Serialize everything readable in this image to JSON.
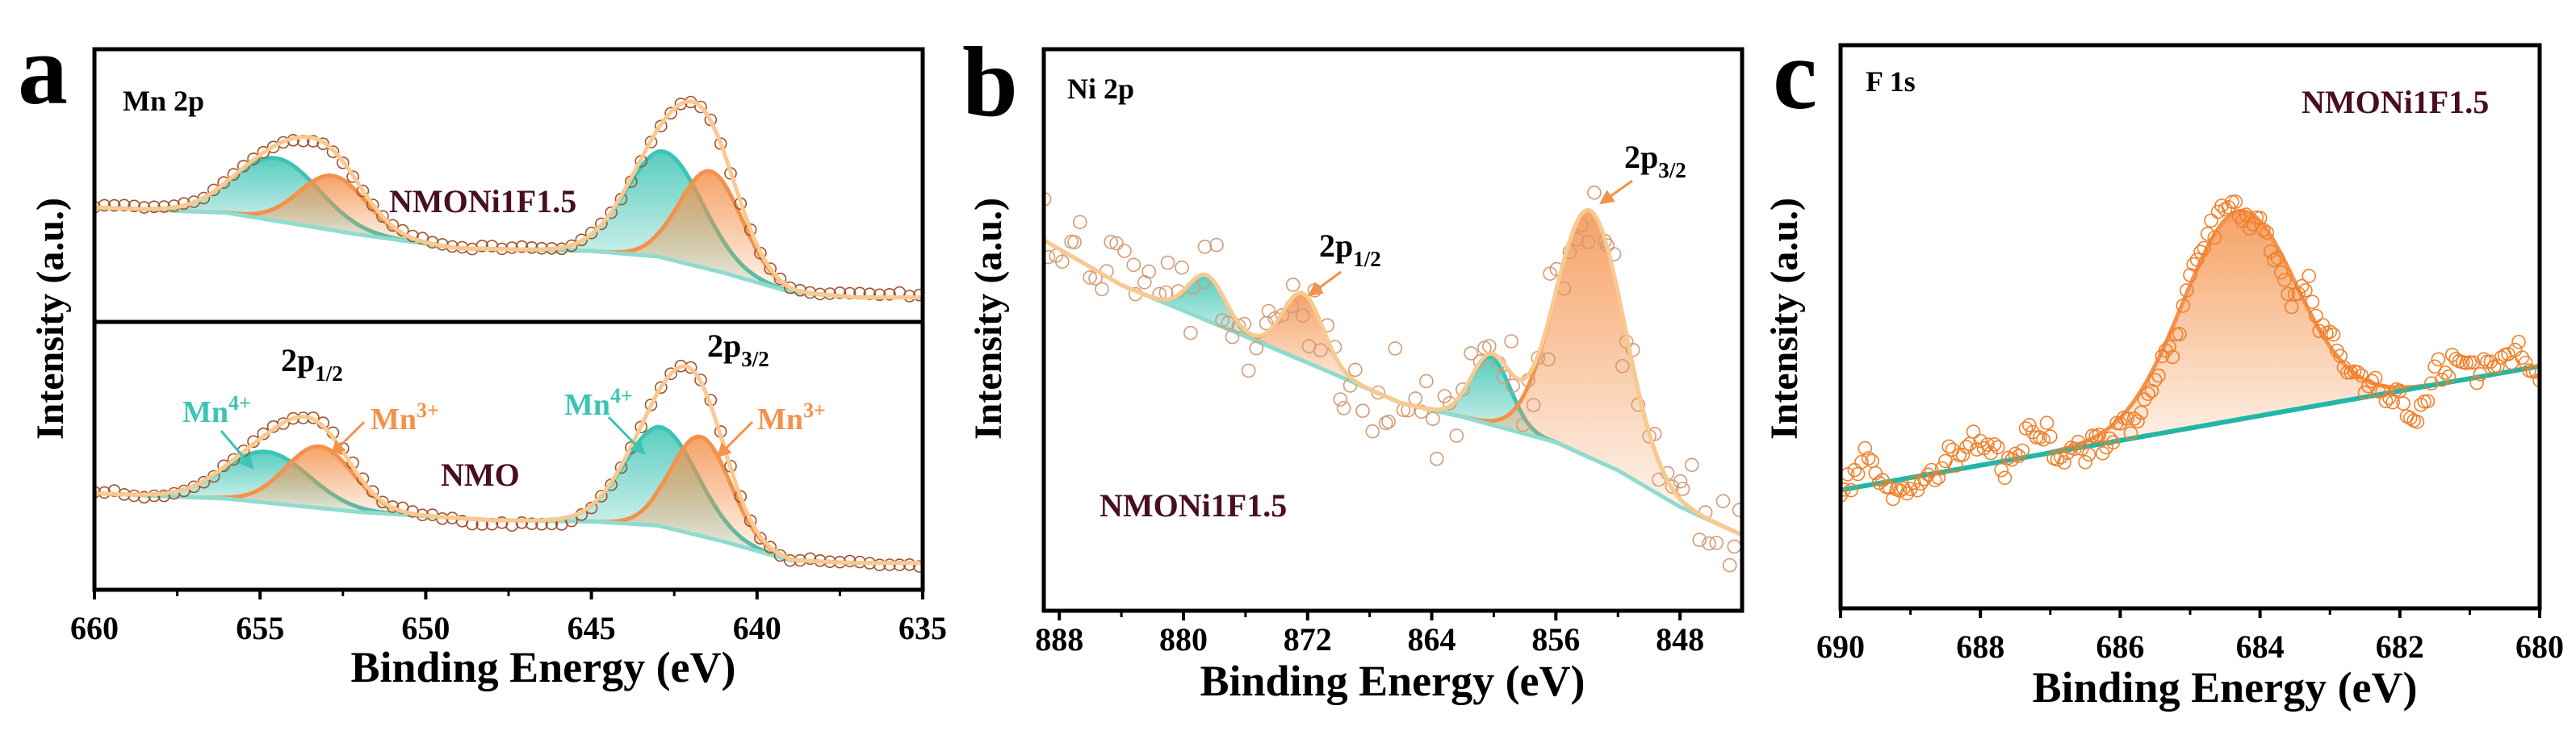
{
  "chart_data": [
    {
      "type": "line",
      "panel_label": "a",
      "title": "Mn 2p",
      "xlabel": "Binding Energy (eV)",
      "ylabel": "Intensity (a.u.)",
      "xlim": [
        660,
        635
      ],
      "xticks": [
        660,
        655,
        650,
        645,
        640,
        635
      ],
      "xtick_labels": [
        "660",
        "655",
        "650",
        "645",
        "640",
        "635"
      ],
      "grid": false,
      "labels": {
        "p12": "2p",
        "p12_sub": "1/2",
        "p32": "2p",
        "p32_sub": "3/2",
        "mn4_left": "Mn",
        "mn4_left_sup": "4+",
        "mn3_left": "Mn",
        "mn3_left_sup": "3+",
        "mn4_right": "Mn",
        "mn4_right_sup": "4+",
        "mn3_right": "Mn",
        "mn3_right_sup": "3+"
      },
      "subplots": [
        {
          "sample": "NMONi1F1.5",
          "ylim": [
            0,
            1
          ],
          "noise": 0.012,
          "baseline": {
            "x": [
              660,
              656,
              652,
              649,
              645,
              643,
              641,
              639,
              637,
              635
            ],
            "y": [
              0.42,
              0.4,
              0.32,
              0.27,
              0.26,
              0.24,
              0.18,
              0.11,
              0.09,
              0.09
            ]
          },
          "components": [
            {
              "name": "Mn4+ 2p1/2",
              "center": 654.5,
              "fwhm": 3.0,
              "height": 0.23,
              "color": "#3cc4b4"
            },
            {
              "name": "Mn3+ 2p1/2",
              "center": 652.8,
              "fwhm": 2.4,
              "height": 0.2,
              "color": "#f4914a"
            },
            {
              "name": "Mn4+ 2p3/2",
              "center": 642.8,
              "fwhm": 2.7,
              "height": 0.39,
              "color": "#3cc4b4"
            },
            {
              "name": "Mn3+ 2p3/2",
              "center": 641.4,
              "fwhm": 2.2,
              "height": 0.36,
              "color": "#f4914a"
            }
          ]
        },
        {
          "sample": "NMO",
          "ylim": [
            0,
            1
          ],
          "noise": 0.012,
          "baseline": {
            "x": [
              660,
              656,
              652,
              648,
              645,
              643,
              641,
              639,
              637,
              635
            ],
            "y": [
              0.36,
              0.34,
              0.29,
              0.26,
              0.255,
              0.24,
              0.18,
              0.11,
              0.1,
              0.1
            ]
          },
          "components": [
            {
              "name": "Mn4+ 2p1/2",
              "center": 654.8,
              "fwhm": 3.0,
              "height": 0.19,
              "color": "#3cc4b4"
            },
            {
              "name": "Mn3+ 2p1/2",
              "center": 653.2,
              "fwhm": 2.4,
              "height": 0.23,
              "color": "#f4914a"
            },
            {
              "name": "Mn4+ 2p3/2",
              "center": 642.9,
              "fwhm": 2.6,
              "height": 0.37,
              "color": "#3cc4b4"
            },
            {
              "name": "Mn3+ 2p3/2",
              "center": 641.7,
              "fwhm": 2.1,
              "height": 0.37,
              "color": "#f4914a"
            }
          ]
        }
      ]
    },
    {
      "type": "line",
      "panel_label": "b",
      "title": "Ni 2p",
      "xlabel": "Binding Energy (eV)",
      "ylabel": "Intensity (a.u.)",
      "xlim": [
        889,
        844
      ],
      "xticks": [
        888,
        880,
        872,
        864,
        856,
        848
      ],
      "xtick_labels": [
        "888",
        "880",
        "872",
        "864",
        "856",
        "848"
      ],
      "grid": false,
      "labels": {
        "p12": "2p",
        "p12_sub": "1/2",
        "p32": "2p",
        "p32_sub": "3/2"
      },
      "subplots": [
        {
          "sample": "NMONi1F1.5",
          "ylim": [
            0,
            1
          ],
          "noise": 0.055,
          "baseline": {
            "x": [
              889,
              884,
              877,
              871,
              866,
              862,
              856,
              852,
              848,
              844
            ],
            "y": [
              0.66,
              0.58,
              0.5,
              0.43,
              0.37,
              0.345,
              0.3,
              0.25,
              0.185,
              0.135
            ]
          },
          "components": [
            {
              "name": "Ni 2p1/2 satellite",
              "center": 878.5,
              "fwhm": 2.8,
              "height": 0.08,
              "color": "#3cc4b4"
            },
            {
              "name": "Ni 2p1/2",
              "center": 872.3,
              "fwhm": 3.0,
              "height": 0.12,
              "color": "#f4914a"
            },
            {
              "name": "Ni 2p3/2 satellite",
              "center": 860.2,
              "fwhm": 3.0,
              "height": 0.12,
              "color": "#3cc4b4"
            },
            {
              "name": "Ni 2p3/2",
              "center": 853.8,
              "fwhm": 5.2,
              "height": 0.44,
              "color": "#f4914a"
            }
          ]
        }
      ]
    },
    {
      "type": "line",
      "panel_label": "c",
      "title": "F 1s",
      "xlabel": "Binding Energy (eV)",
      "ylabel": "Intensity (a.u.)",
      "xlim": [
        690,
        680
      ],
      "xticks": [
        690,
        688,
        686,
        684,
        682,
        680
      ],
      "xtick_labels": [
        "690",
        "688",
        "686",
        "684",
        "682",
        "680"
      ],
      "grid": false,
      "labels": {},
      "subplots": [
        {
          "sample": "NMONi1F1.5",
          "ylim": [
            0,
            1
          ],
          "noise": 0.04,
          "baseline": {
            "x": [
              690,
              680
            ],
            "y": [
              0.21,
              0.43
            ]
          },
          "components": [
            {
              "name": "F 1s",
              "center": 684.3,
              "fwhm": 1.9,
              "height": 0.37,
              "color": "#f4914a"
            }
          ]
        }
      ]
    }
  ]
}
